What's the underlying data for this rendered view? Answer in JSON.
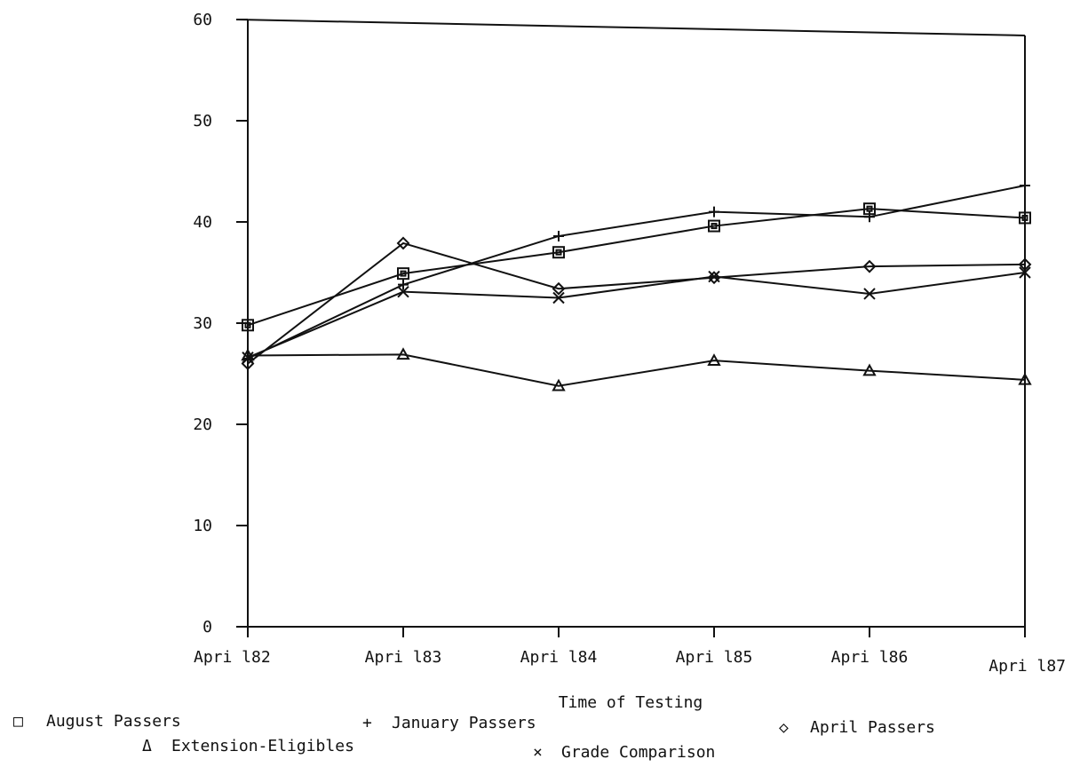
{
  "chart_data": {
    "type": "line",
    "title": "",
    "xlabel": "Time of Testing",
    "ylabel": "",
    "categories": [
      "Apri l82",
      "Apri l83",
      "Apri l84",
      "Apri l85",
      "Apri l86",
      "Apri l87"
    ],
    "yticks": [
      "0",
      "10",
      "20",
      "30",
      "40",
      "50",
      "60"
    ],
    "ylim": [
      0,
      60
    ],
    "grid": false,
    "legend_position": "bottom",
    "series": [
      {
        "name": "August Passers",
        "marker": "square",
        "symbol": "□",
        "values": [
          29.8,
          34.9,
          37.0,
          39.6,
          41.3,
          40.4
        ]
      },
      {
        "name": "January Passers",
        "marker": "plus",
        "symbol": "+",
        "values": [
          26.5,
          33.8,
          38.6,
          41.0,
          40.5,
          43.6
        ]
      },
      {
        "name": "April Passers",
        "marker": "diamond",
        "symbol": "◇",
        "values": [
          26.0,
          37.9,
          33.4,
          34.5,
          35.6,
          35.8
        ]
      },
      {
        "name": "Extension-Eligibles",
        "marker": "triangle",
        "symbol": "Δ",
        "values": [
          26.8,
          26.9,
          23.8,
          26.3,
          25.3,
          24.4
        ]
      },
      {
        "name": "Grade Comparison",
        "marker": "x",
        "symbol": "×",
        "values": [
          26.6,
          33.1,
          32.5,
          34.6,
          32.9,
          35.0
        ]
      }
    ]
  }
}
